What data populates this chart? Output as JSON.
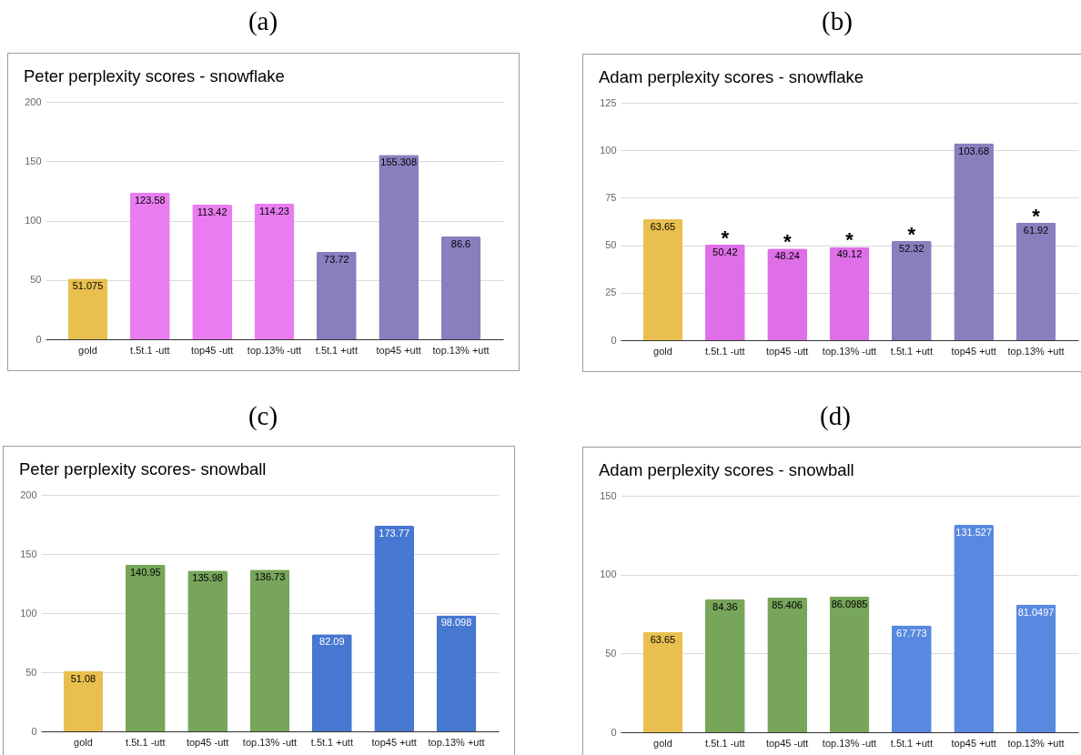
{
  "chart_data": [
    {
      "type": "bar",
      "title": "Peter perplexity scores - snowflake",
      "annotations": [
        "(a)"
      ],
      "categories": [
        "gold",
        "t.5t.1 -utt",
        "top45 -utt",
        "top.13% -utt",
        "t.5t.1 +utt",
        "top45 +utt",
        "top.13% +utt"
      ],
      "values": [
        51.075,
        123.58,
        113.42,
        114.23,
        73.72,
        155.308,
        86.6
      ],
      "colors": [
        "#e9c04f",
        "#e87cf0",
        "#e87cf0",
        "#e87cf0",
        "#8a7fbe",
        "#8a7fbe",
        "#8a7fbe"
      ],
      "ylim": [
        0,
        200
      ],
      "yticks": [
        0,
        50,
        100,
        150,
        200
      ],
      "grid": "y",
      "data_labels": true
    },
    {
      "type": "bar",
      "title": "Adam perplexity scores - snowflake",
      "annotations": [
        "(b)",
        {
          "text": "*",
          "x": "t.5t.1 -utt",
          "y": 50.42
        },
        {
          "text": "*",
          "x": "top45 -utt",
          "y": 48.24
        },
        {
          "text": "*",
          "x": "top.13% -utt",
          "y": 49.12
        },
        {
          "text": "*",
          "x": "t.5t.1 +utt",
          "y": 52.32
        },
        {
          "text": "*",
          "x": "top.13% +utt",
          "y": 61.92
        }
      ],
      "categories": [
        "gold",
        "t.5t.1 -utt",
        "top45 -utt",
        "top.13% -utt",
        "t.5t.1 +utt",
        "top45 +utt",
        "top.13% +utt"
      ],
      "values": [
        63.65,
        50.42,
        48.24,
        49.12,
        52.32,
        103.68,
        61.92
      ],
      "colors": [
        "#e9c04f",
        "#de6fe7",
        "#de6fe7",
        "#de6fe7",
        "#8a7fbe",
        "#8a7fbe",
        "#8a7fbe"
      ],
      "ylim": [
        0,
        125
      ],
      "yticks": [
        0,
        25,
        50,
        75,
        100,
        125
      ],
      "grid": "y",
      "data_labels": true
    },
    {
      "type": "bar",
      "title": "Peter perplexity scores- snowball",
      "annotations": [
        "(c)"
      ],
      "categories": [
        "gold",
        "t.5t.1 -utt",
        "top45 -utt",
        "top.13% -utt",
        "t.5t.1 +utt",
        "top45 +utt",
        "top.13% +utt"
      ],
      "values": [
        51.08,
        140.95,
        135.98,
        136.73,
        82.09,
        173.77,
        98.098
      ],
      "colors": [
        "#e9c04f",
        "#77a55a",
        "#77a55a",
        "#77a55a",
        "#4677d1",
        "#4677d1",
        "#4677d1"
      ],
      "ylim": [
        0,
        200
      ],
      "yticks": [
        0,
        50,
        100,
        150,
        200
      ],
      "grid": "y",
      "data_labels": true
    },
    {
      "type": "bar",
      "title": "Adam perplexity scores - snowball",
      "annotations": [
        "(d)"
      ],
      "categories": [
        "gold",
        "t.5t.1 -utt",
        "top45 -utt",
        "top.13% -utt",
        "t.5t.1 +utt",
        "top45 +utt",
        "top.13% +utt"
      ],
      "values": [
        63.65,
        84.36,
        85.406,
        86.0985,
        67.773,
        131.527,
        81.0497
      ],
      "colors": [
        "#e9c04f",
        "#77a55a",
        "#77a55a",
        "#77a55a",
        "#5889e0",
        "#5889e0",
        "#5889e0"
      ],
      "ylim": [
        0,
        150
      ],
      "yticks": [
        0,
        50,
        100,
        150
      ],
      "grid": "y",
      "data_labels": true
    }
  ]
}
